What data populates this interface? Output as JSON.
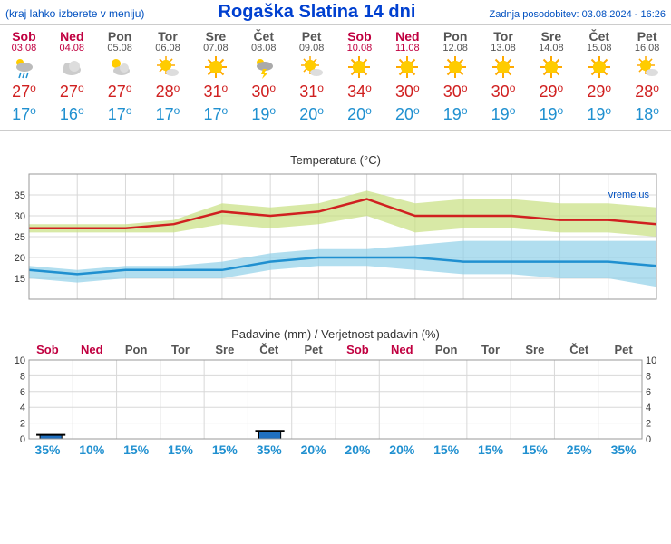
{
  "header": {
    "menu_note": "(kraj lahko izberete v meniju)",
    "title": "Rogaška Slatina 14 dni",
    "updated_label": "Zadnja posodobitev: 03.08.2024 - 16:26"
  },
  "days": [
    {
      "name": "Sob",
      "date": "03.08",
      "weekend": true,
      "hi": 27,
      "lo": 17,
      "icon": "rain"
    },
    {
      "name": "Ned",
      "date": "04.08",
      "weekend": true,
      "hi": 27,
      "lo": 16,
      "icon": "cloud"
    },
    {
      "name": "Pon",
      "date": "05.08",
      "weekend": false,
      "hi": 27,
      "lo": 17,
      "icon": "partly"
    },
    {
      "name": "Tor",
      "date": "06.08",
      "weekend": false,
      "hi": 28,
      "lo": 17,
      "icon": "mostly-sun"
    },
    {
      "name": "Sre",
      "date": "07.08",
      "weekend": false,
      "hi": 31,
      "lo": 17,
      "icon": "sun"
    },
    {
      "name": "Čet",
      "date": "08.08",
      "weekend": false,
      "hi": 30,
      "lo": 19,
      "icon": "storm"
    },
    {
      "name": "Pet",
      "date": "09.08",
      "weekend": false,
      "hi": 31,
      "lo": 20,
      "icon": "mostly-sun"
    },
    {
      "name": "Sob",
      "date": "10.08",
      "weekend": true,
      "hi": 34,
      "lo": 20,
      "icon": "sun"
    },
    {
      "name": "Ned",
      "date": "11.08",
      "weekend": true,
      "hi": 30,
      "lo": 20,
      "icon": "sun"
    },
    {
      "name": "Pon",
      "date": "12.08",
      "weekend": false,
      "hi": 30,
      "lo": 19,
      "icon": "sun"
    },
    {
      "name": "Tor",
      "date": "13.08",
      "weekend": false,
      "hi": 30,
      "lo": 19,
      "icon": "sun"
    },
    {
      "name": "Sre",
      "date": "14.08",
      "weekend": false,
      "hi": 29,
      "lo": 19,
      "icon": "sun"
    },
    {
      "name": "Čet",
      "date": "15.08",
      "weekend": false,
      "hi": 29,
      "lo": 19,
      "icon": "sun"
    },
    {
      "name": "Pet",
      "date": "16.08",
      "weekend": false,
      "hi": 28,
      "lo": 18,
      "icon": "mostly-sun"
    }
  ],
  "temp_chart": {
    "title": "Temperatura (°C)",
    "brand": "vreme.us",
    "ylim": [
      10,
      40
    ],
    "yticks": [
      15,
      20,
      25,
      30,
      35
    ],
    "hi_line_color": "#d02020",
    "hi_band_color": "#c8e080",
    "lo_line_color": "#2090d0",
    "lo_band_color": "#90d0e8",
    "grid_color": "#d8d8d8",
    "hi_band_lo": [
      26,
      26,
      26,
      26,
      28,
      27,
      28,
      30,
      26,
      27,
      27,
      26,
      26,
      25
    ],
    "hi_band_hi": [
      28,
      28,
      28,
      29,
      33,
      32,
      33,
      36,
      33,
      34,
      34,
      33,
      33,
      32
    ],
    "lo_band_lo": [
      15,
      14,
      15,
      15,
      15,
      17,
      18,
      18,
      17,
      16,
      16,
      15,
      15,
      13
    ],
    "lo_band_hi": [
      18,
      17,
      18,
      18,
      19,
      21,
      22,
      22,
      23,
      24,
      24,
      24,
      24,
      24
    ]
  },
  "precip_chart": {
    "title": "Padavine (mm) / Verjetnost padavin (%)",
    "ylim": [
      0,
      10
    ],
    "yticks": [
      0,
      2,
      4,
      6,
      8,
      10
    ],
    "bar_color": "#2070c0",
    "bar_border": "#000",
    "precip_mm": [
      0.5,
      0,
      0,
      0,
      0,
      1,
      0,
      0,
      0,
      0,
      0,
      0,
      0,
      0
    ],
    "probability": [
      35,
      10,
      15,
      15,
      15,
      35,
      20,
      20,
      20,
      15,
      15,
      15,
      25,
      35
    ]
  },
  "colors": {
    "weekend": "#c00040",
    "weekday": "#555",
    "temp_hi": "#d02020",
    "temp_lo": "#2090d0"
  }
}
